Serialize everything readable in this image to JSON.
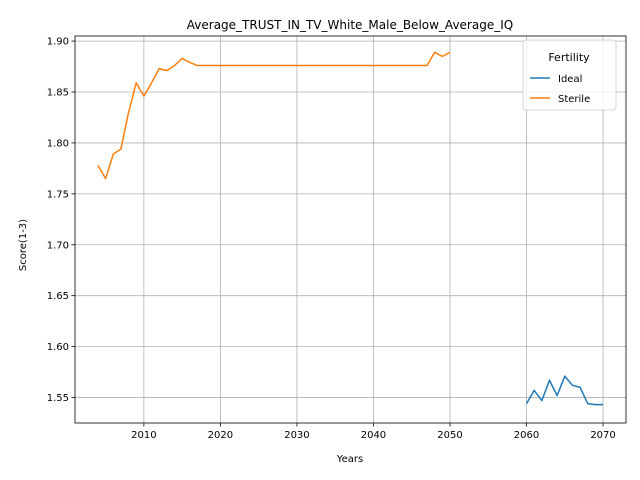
{
  "chart_data": {
    "type": "line",
    "title": "Average_TRUST_IN_TV_White_Male_Below_Average_IQ",
    "xlabel": "Years",
    "ylabel": "Score(1-3)",
    "xlim": [
      2001,
      2073
    ],
    "ylim": [
      1.525,
      1.905
    ],
    "x_ticks": [
      2010,
      2020,
      2030,
      2040,
      2050,
      2060,
      2070
    ],
    "y_ticks": [
      1.55,
      1.6,
      1.65,
      1.7,
      1.75,
      1.8,
      1.85,
      1.9
    ],
    "y_tick_labels": [
      "1.55",
      "1.60",
      "1.65",
      "1.70",
      "1.75",
      "1.80",
      "1.85",
      "1.90"
    ],
    "grid": true,
    "legend": {
      "title": "Fertility",
      "placement": "top-right"
    },
    "series": [
      {
        "name": "Ideal",
        "color": "#1f77b4",
        "x": [
          2060,
          2061,
          2062,
          2063,
          2064,
          2065,
          2066,
          2067,
          2068,
          2069,
          2070
        ],
        "y": [
          1.544,
          1.557,
          1.547,
          1.567,
          1.552,
          1.571,
          1.562,
          1.56,
          1.544,
          1.543,
          1.543
        ]
      },
      {
        "name": "Sterile",
        "color": "#ff7f0e",
        "x": [
          2004,
          2005,
          2006,
          2007,
          2008,
          2009,
          2010,
          2011,
          2012,
          2013,
          2014,
          2015,
          2016,
          2017,
          2018,
          2019,
          2020,
          2021,
          2022,
          2023,
          2024,
          2025,
          2026,
          2027,
          2028,
          2029,
          2030,
          2031,
          2032,
          2033,
          2034,
          2035,
          2036,
          2037,
          2038,
          2039,
          2040,
          2041,
          2042,
          2043,
          2044,
          2045,
          2046,
          2047,
          2048,
          2049,
          2050
        ],
        "y": [
          1.778,
          1.765,
          1.789,
          1.794,
          1.83,
          1.859,
          1.846,
          1.859,
          1.873,
          1.871,
          1.876,
          1.883,
          1.879,
          1.876,
          1.876,
          1.876,
          1.876,
          1.876,
          1.876,
          1.876,
          1.876,
          1.876,
          1.876,
          1.876,
          1.876,
          1.876,
          1.876,
          1.876,
          1.876,
          1.876,
          1.876,
          1.876,
          1.876,
          1.876,
          1.876,
          1.876,
          1.876,
          1.876,
          1.876,
          1.876,
          1.876,
          1.876,
          1.876,
          1.876,
          1.889,
          1.885,
          1.889
        ]
      }
    ]
  }
}
